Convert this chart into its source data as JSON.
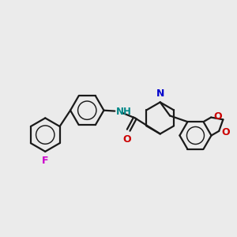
{
  "bg_color": "#ebebeb",
  "bond_color": "#1a1a1a",
  "N_color": "#0000cc",
  "O_color": "#cc0000",
  "F_color": "#cc00cc",
  "NH_color": "#008888",
  "line_width": 1.6,
  "figsize": [
    3.0,
    3.0
  ],
  "dpi": 100,
  "xlim": [
    0,
    10
  ],
  "ylim": [
    0,
    10
  ]
}
